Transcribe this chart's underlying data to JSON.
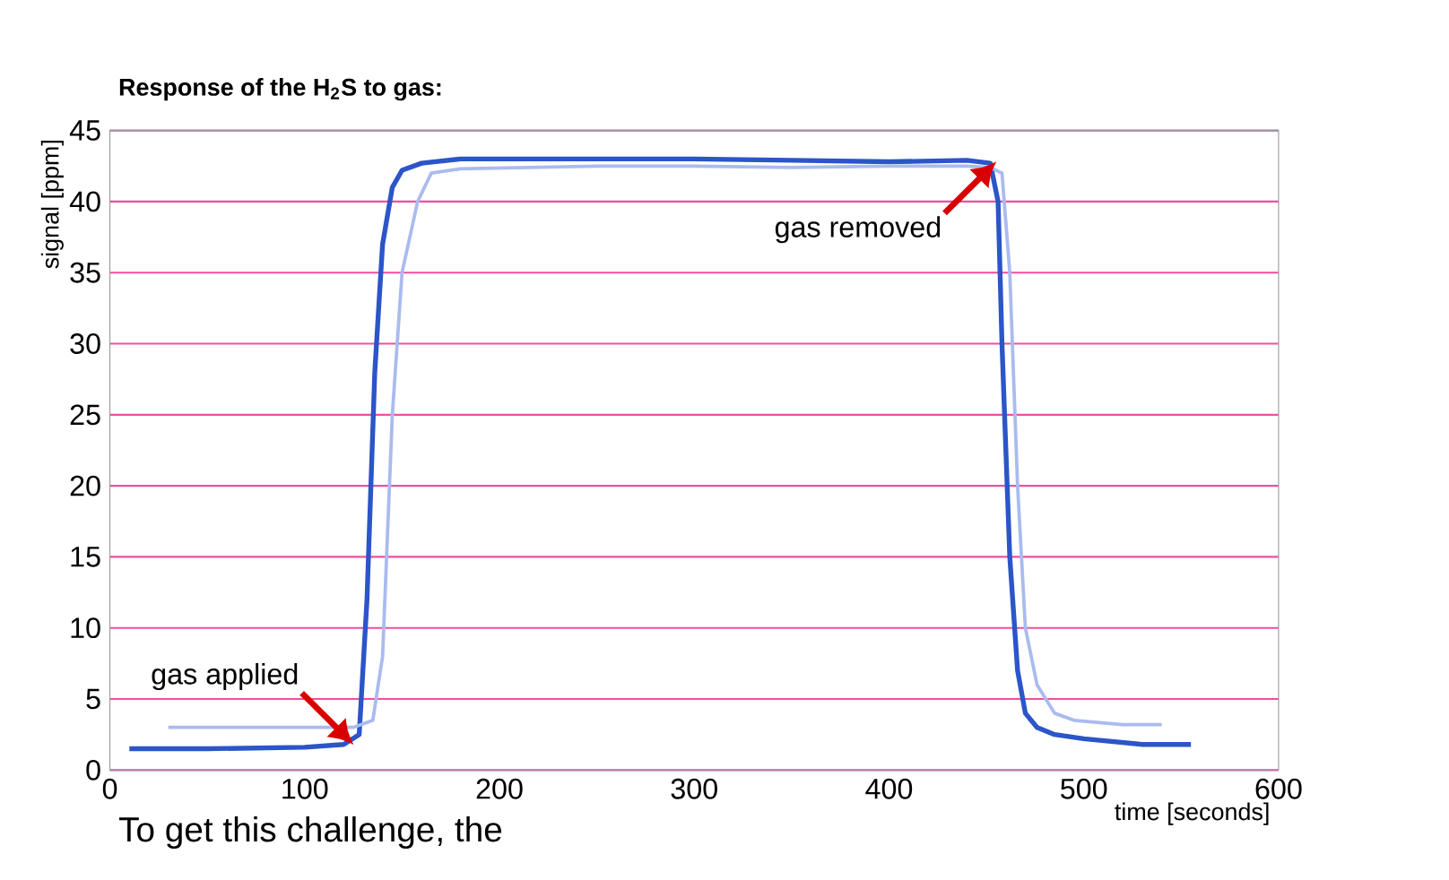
{
  "chart_data": {
    "type": "line",
    "title": "Response of the H$_{2}$S to gas:",
    "xlabel": "time [seconds]",
    "ylabel": "signal [ppm]",
    "xlim": [
      0,
      600
    ],
    "ylim": [
      0,
      45
    ],
    "xticks": [
      0,
      100,
      200,
      300,
      400,
      500,
      600
    ],
    "yticks": [
      0,
      5,
      10,
      15,
      20,
      25,
      30,
      35,
      40,
      45
    ],
    "grid": "y",
    "series": [
      {
        "color": "#2b55c8",
        "x": [
          10,
          50,
          100,
          120,
          128,
          132,
          136,
          140,
          145,
          150,
          160,
          180,
          250,
          300,
          350,
          400,
          440,
          452,
          456,
          458,
          462,
          466,
          470,
          476,
          485,
          500,
          530,
          555
        ],
        "values": [
          1.5,
          1.5,
          1.6,
          1.8,
          2.5,
          12,
          28,
          37,
          41,
          42.2,
          42.7,
          43,
          43,
          43,
          42.9,
          42.8,
          42.9,
          42.7,
          40,
          30,
          15,
          7,
          4,
          3,
          2.5,
          2.2,
          1.8,
          1.8
        ]
      },
      {
        "color": "#aabbee",
        "x": [
          30,
          60,
          100,
          125,
          135,
          140,
          145,
          150,
          158,
          165,
          180,
          250,
          300,
          350,
          400,
          440,
          452,
          458,
          462,
          466,
          470,
          476,
          485,
          495,
          520,
          540
        ],
        "values": [
          3,
          3,
          3,
          3,
          3.5,
          8,
          25,
          35,
          40,
          42,
          42.3,
          42.5,
          42.5,
          42.4,
          42.5,
          42.5,
          42.4,
          42,
          35,
          20,
          10,
          6,
          4,
          3.5,
          3.2,
          3.2
        ]
      }
    ],
    "annotations": [
      {
        "text": "gas applied",
        "x": 125,
        "y": 1.8
      },
      {
        "text": "gas removed",
        "x": 455,
        "y": 42.8
      },
      "To get this challenge, the"
    ]
  }
}
